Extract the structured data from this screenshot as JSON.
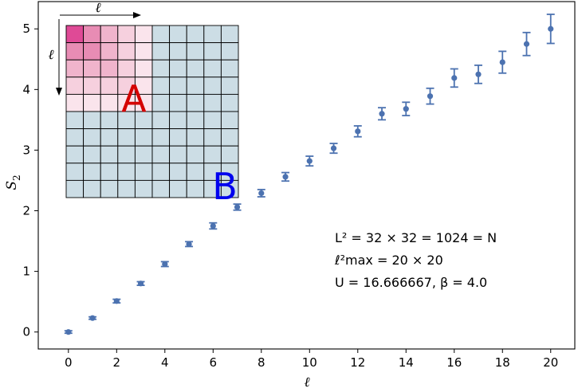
{
  "chart_data": {
    "type": "scatter",
    "xlabel": "ℓ",
    "ylabel": "S",
    "ylabel_sub": "2",
    "xlim": [
      -1.25,
      21
    ],
    "ylim": [
      -0.28,
      5.45
    ],
    "xticks": [
      0,
      2,
      4,
      6,
      8,
      10,
      12,
      14,
      16,
      18,
      20
    ],
    "yticks": [
      0,
      1,
      2,
      3,
      4,
      5
    ],
    "series": [
      {
        "color": "#4c72b0",
        "x": [
          0,
          1,
          2,
          3,
          4,
          5,
          6,
          7,
          8,
          9,
          10,
          11,
          12,
          13,
          14,
          15,
          16,
          17,
          18,
          19,
          20
        ],
        "y": [
          0.0,
          0.23,
          0.51,
          0.8,
          1.12,
          1.45,
          1.75,
          2.06,
          2.29,
          2.56,
          2.82,
          3.03,
          3.31,
          3.6,
          3.68,
          3.89,
          4.19,
          4.25,
          4.45,
          4.75,
          5.0
        ],
        "yerr": [
          0.02,
          0.02,
          0.03,
          0.03,
          0.04,
          0.04,
          0.05,
          0.05,
          0.06,
          0.07,
          0.08,
          0.08,
          0.09,
          0.1,
          0.11,
          0.13,
          0.15,
          0.15,
          0.18,
          0.19,
          0.24
        ]
      }
    ],
    "annotations": {
      "line1": "L² = 32 × 32 = 1024 = N",
      "line2": "ℓ²max = 20 × 20",
      "line3": "U = 16.666667, β = 4.0"
    }
  },
  "inset": {
    "label_a": "A",
    "label_b": "B",
    "arrow_label_top": "ℓ",
    "arrow_label_left": "ℓ",
    "grid_size": 10,
    "region_a_size": 5,
    "color_a": "#d40000",
    "color_b": "#0000ee",
    "cell_b_color": "#ccdde5"
  }
}
